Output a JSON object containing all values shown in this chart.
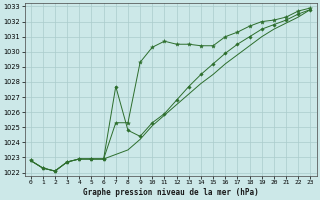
{
  "bg_color": "#cce8e8",
  "grid_color": "#aacccc",
  "line_color": "#2d6e2d",
  "marker_color": "#2d6e2d",
  "title": "Graphe pression niveau de la mer (hPa)",
  "xlim": [
    -0.5,
    23.5
  ],
  "ylim": [
    1021.8,
    1033.2
  ],
  "xticks": [
    0,
    1,
    2,
    3,
    4,
    5,
    6,
    7,
    8,
    9,
    10,
    11,
    12,
    13,
    14,
    15,
    16,
    17,
    18,
    19,
    20,
    21,
    22,
    23
  ],
  "yticks": [
    1022,
    1023,
    1024,
    1025,
    1026,
    1027,
    1028,
    1029,
    1030,
    1031,
    1032,
    1033
  ],
  "series1_x": [
    0,
    1,
    2,
    3,
    4,
    5,
    6,
    7,
    8,
    9,
    10,
    11,
    12,
    13,
    14,
    15,
    16,
    17,
    18,
    19,
    20,
    21,
    22,
    23
  ],
  "series1_y": [
    1022.8,
    1022.3,
    1022.1,
    1022.7,
    1022.9,
    1022.9,
    1022.9,
    1025.3,
    1025.3,
    1029.3,
    1030.3,
    1030.7,
    1030.5,
    1030.5,
    1030.4,
    1030.4,
    1031.0,
    1031.3,
    1031.7,
    1032.0,
    1032.1,
    1032.3,
    1032.7,
    1032.9
  ],
  "series2_x": [
    0,
    1,
    2,
    3,
    4,
    5,
    6,
    7,
    8,
    9,
    10,
    11,
    12,
    13,
    14,
    15,
    16,
    17,
    18,
    19,
    20,
    21,
    22,
    23
  ],
  "series2_y": [
    1022.8,
    1022.3,
    1022.1,
    1022.7,
    1022.9,
    1022.9,
    1022.9,
    1027.7,
    1024.8,
    1024.4,
    1025.3,
    1025.9,
    1026.8,
    1027.7,
    1028.5,
    1029.2,
    1029.9,
    1030.5,
    1031.0,
    1031.5,
    1031.8,
    1032.1,
    1032.5,
    1032.8
  ],
  "series3_x": [
    0,
    1,
    2,
    3,
    4,
    5,
    6,
    7,
    8,
    9,
    10,
    11,
    12,
    13,
    14,
    15,
    16,
    17,
    18,
    19,
    20,
    21,
    22,
    23
  ],
  "series3_y": [
    1022.8,
    1022.3,
    1022.1,
    1022.7,
    1022.9,
    1022.9,
    1022.9,
    1023.2,
    1023.5,
    1024.2,
    1025.1,
    1025.8,
    1026.5,
    1027.2,
    1027.9,
    1028.5,
    1029.2,
    1029.8,
    1030.4,
    1031.0,
    1031.5,
    1031.9,
    1032.3,
    1032.8
  ]
}
